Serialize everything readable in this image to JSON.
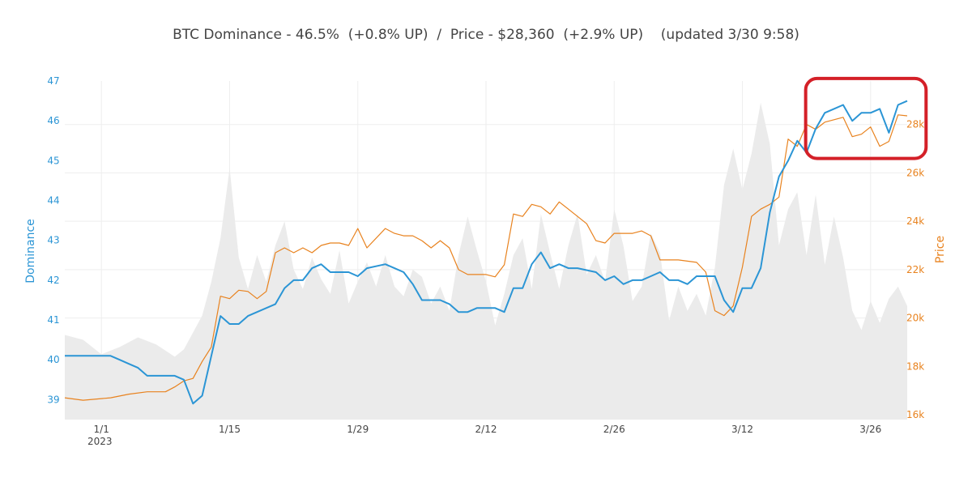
{
  "chart_data": {
    "type": "line",
    "title": "BTC Dominance - 46.5%  (+0.8% UP)  /  Price - $28,360  (+2.9% UP)    (updated 3/30 9:58)",
    "xlabel": "",
    "x_ticks": [
      "1/1",
      "1/15",
      "1/29",
      "2/12",
      "2/26",
      "3/12",
      "3/26"
    ],
    "x_tick_year": "2023",
    "x_range": [
      "2022-12-28",
      "2023-03-30"
    ],
    "y_left": {
      "label": "Dominance",
      "ticks": [
        "39",
        "40",
        "41",
        "42",
        "43",
        "44",
        "45",
        "46",
        "47"
      ],
      "range": [
        38.5,
        47
      ],
      "color": "#2b95d5"
    },
    "y_right": {
      "label": "Price",
      "ticks": [
        "16k",
        "18k",
        "20k",
        "22k",
        "24k",
        "26k",
        "28k"
      ],
      "range": [
        15800,
        29800
      ],
      "color": "#e8821e"
    },
    "grid": true,
    "legend": "none",
    "series": [
      {
        "axis": "left",
        "color": "#2b95d5",
        "points": [
          [
            "2022-12-28",
            40.1
          ],
          [
            "2022-12-30",
            40.1
          ],
          [
            "2023-01-02",
            40.1
          ],
          [
            "2023-01-03",
            40.0
          ],
          [
            "2023-01-04",
            39.9
          ],
          [
            "2023-01-05",
            39.8
          ],
          [
            "2023-01-06",
            39.6
          ],
          [
            "2023-01-07",
            39.6
          ],
          [
            "2023-01-08",
            39.6
          ],
          [
            "2023-01-09",
            39.6
          ],
          [
            "2023-01-10",
            39.5
          ],
          [
            "2023-01-11",
            38.9
          ],
          [
            "2023-01-12",
            39.1
          ],
          [
            "2023-01-13",
            40.1
          ],
          [
            "2023-01-14",
            41.1
          ],
          [
            "2023-01-15",
            40.9
          ],
          [
            "2023-01-16",
            40.9
          ],
          [
            "2023-01-17",
            41.1
          ],
          [
            "2023-01-18",
            41.2
          ],
          [
            "2023-01-20",
            41.4
          ],
          [
            "2023-01-21",
            41.8
          ],
          [
            "2023-01-22",
            42.0
          ],
          [
            "2023-01-23",
            42.0
          ],
          [
            "2023-01-24",
            42.3
          ],
          [
            "2023-01-25",
            42.4
          ],
          [
            "2023-01-26",
            42.2
          ],
          [
            "2023-01-28",
            42.2
          ],
          [
            "2023-01-29",
            42.1
          ],
          [
            "2023-01-30",
            42.3
          ],
          [
            "2023-02-01",
            42.4
          ],
          [
            "2023-02-02",
            42.3
          ],
          [
            "2023-02-03",
            42.2
          ],
          [
            "2023-02-04",
            41.9
          ],
          [
            "2023-02-05",
            41.5
          ],
          [
            "2023-02-07",
            41.5
          ],
          [
            "2023-02-08",
            41.4
          ],
          [
            "2023-02-09",
            41.2
          ],
          [
            "2023-02-10",
            41.2
          ],
          [
            "2023-02-11",
            41.3
          ],
          [
            "2023-02-12",
            41.3
          ],
          [
            "2023-02-13",
            41.3
          ],
          [
            "2023-02-14",
            41.2
          ],
          [
            "2023-02-15",
            41.8
          ],
          [
            "2023-02-16",
            41.8
          ],
          [
            "2023-02-17",
            42.4
          ],
          [
            "2023-02-18",
            42.7
          ],
          [
            "2023-02-19",
            42.3
          ],
          [
            "2023-02-20",
            42.4
          ],
          [
            "2023-02-21",
            42.3
          ],
          [
            "2023-02-22",
            42.3
          ],
          [
            "2023-02-24",
            42.2
          ],
          [
            "2023-02-25",
            42.0
          ],
          [
            "2023-02-26",
            42.1
          ],
          [
            "2023-02-27",
            41.9
          ],
          [
            "2023-02-28",
            42.0
          ],
          [
            "2023-03-01",
            42.0
          ],
          [
            "2023-03-02",
            42.1
          ],
          [
            "2023-03-03",
            42.2
          ],
          [
            "2023-03-04",
            42.0
          ],
          [
            "2023-03-05",
            42.0
          ],
          [
            "2023-03-06",
            41.9
          ],
          [
            "2023-03-07",
            42.1
          ],
          [
            "2023-03-08",
            42.1
          ],
          [
            "2023-03-09",
            42.1
          ],
          [
            "2023-03-10",
            41.5
          ],
          [
            "2023-03-11",
            41.2
          ],
          [
            "2023-03-12",
            41.8
          ],
          [
            "2023-03-13",
            41.8
          ],
          [
            "2023-03-14",
            42.3
          ],
          [
            "2023-03-15",
            43.7
          ],
          [
            "2023-03-16",
            44.6
          ],
          [
            "2023-03-17",
            45.0
          ],
          [
            "2023-03-18",
            45.5
          ],
          [
            "2023-03-19",
            45.2
          ],
          [
            "2023-03-20",
            45.8
          ],
          [
            "2023-03-21",
            46.2
          ],
          [
            "2023-03-22",
            46.3
          ],
          [
            "2023-03-23",
            46.4
          ],
          [
            "2023-03-24",
            46.0
          ],
          [
            "2023-03-25",
            46.2
          ],
          [
            "2023-03-26",
            46.2
          ],
          [
            "2023-03-27",
            46.3
          ],
          [
            "2023-03-28",
            45.7
          ],
          [
            "2023-03-29",
            46.4
          ],
          [
            "2023-03-30",
            46.5
          ]
        ]
      },
      {
        "axis": "right",
        "color": "#e8821e",
        "points": [
          [
            "2022-12-28",
            16700
          ],
          [
            "2022-12-30",
            16600
          ],
          [
            "2023-01-02",
            16700
          ],
          [
            "2023-01-04",
            16850
          ],
          [
            "2023-01-06",
            16950
          ],
          [
            "2023-01-08",
            16950
          ],
          [
            "2023-01-09",
            17150
          ],
          [
            "2023-01-10",
            17400
          ],
          [
            "2023-01-11",
            17500
          ],
          [
            "2023-01-12",
            18200
          ],
          [
            "2023-01-13",
            18800
          ],
          [
            "2023-01-14",
            20900
          ],
          [
            "2023-01-15",
            20800
          ],
          [
            "2023-01-16",
            21150
          ],
          [
            "2023-01-17",
            21100
          ],
          [
            "2023-01-18",
            20800
          ],
          [
            "2023-01-19",
            21100
          ],
          [
            "2023-01-20",
            22700
          ],
          [
            "2023-01-21",
            22900
          ],
          [
            "2023-01-22",
            22700
          ],
          [
            "2023-01-23",
            22900
          ],
          [
            "2023-01-24",
            22700
          ],
          [
            "2023-01-25",
            23000
          ],
          [
            "2023-01-26",
            23100
          ],
          [
            "2023-01-27",
            23100
          ],
          [
            "2023-01-28",
            23000
          ],
          [
            "2023-01-29",
            23700
          ],
          [
            "2023-01-30",
            22900
          ],
          [
            "2023-02-01",
            23700
          ],
          [
            "2023-02-02",
            23500
          ],
          [
            "2023-02-03",
            23400
          ],
          [
            "2023-02-04",
            23400
          ],
          [
            "2023-02-05",
            23200
          ],
          [
            "2023-02-06",
            22900
          ],
          [
            "2023-02-07",
            23200
          ],
          [
            "2023-02-08",
            22900
          ],
          [
            "2023-02-09",
            22000
          ],
          [
            "2023-02-10",
            21800
          ],
          [
            "2023-02-11",
            21800
          ],
          [
            "2023-02-12",
            21800
          ],
          [
            "2023-02-13",
            21700
          ],
          [
            "2023-02-14",
            22200
          ],
          [
            "2023-02-15",
            24300
          ],
          [
            "2023-02-16",
            24200
          ],
          [
            "2023-02-17",
            24700
          ],
          [
            "2023-02-18",
            24600
          ],
          [
            "2023-02-19",
            24300
          ],
          [
            "2023-02-20",
            24800
          ],
          [
            "2023-02-21",
            24500
          ],
          [
            "2023-02-22",
            24200
          ],
          [
            "2023-02-23",
            23900
          ],
          [
            "2023-02-24",
            23200
          ],
          [
            "2023-02-25",
            23100
          ],
          [
            "2023-02-26",
            23500
          ],
          [
            "2023-02-27",
            23500
          ],
          [
            "2023-02-28",
            23500
          ],
          [
            "2023-03-01",
            23600
          ],
          [
            "2023-03-02",
            23400
          ],
          [
            "2023-03-03",
            22400
          ],
          [
            "2023-03-05",
            22400
          ],
          [
            "2023-03-07",
            22300
          ],
          [
            "2023-03-08",
            21900
          ],
          [
            "2023-03-09",
            20300
          ],
          [
            "2023-03-10",
            20100
          ],
          [
            "2023-03-11",
            20500
          ],
          [
            "2023-03-12",
            22100
          ],
          [
            "2023-03-13",
            24200
          ],
          [
            "2023-03-14",
            24500
          ],
          [
            "2023-03-15",
            24700
          ],
          [
            "2023-03-16",
            25000
          ],
          [
            "2023-03-17",
            27400
          ],
          [
            "2023-03-18",
            27100
          ],
          [
            "2023-03-19",
            28000
          ],
          [
            "2023-03-20",
            27800
          ],
          [
            "2023-03-21",
            28100
          ],
          [
            "2023-03-22",
            28200
          ],
          [
            "2023-03-23",
            28300
          ],
          [
            "2023-03-24",
            27500
          ],
          [
            "2023-03-25",
            27600
          ],
          [
            "2023-03-26",
            27900
          ],
          [
            "2023-03-27",
            27100
          ],
          [
            "2023-03-28",
            27300
          ],
          [
            "2023-03-29",
            28400
          ],
          [
            "2023-03-30",
            28360
          ]
        ]
      },
      {
        "axis": "right",
        "type": "area",
        "color": "#ebebeb",
        "points": [
          [
            "2022-12-28",
            19300
          ],
          [
            "2022-12-30",
            19100
          ],
          [
            "2023-01-01",
            18500
          ],
          [
            "2023-01-03",
            18800
          ],
          [
            "2023-01-05",
            19200
          ],
          [
            "2023-01-07",
            18900
          ],
          [
            "2023-01-09",
            18400
          ],
          [
            "2023-01-10",
            18700
          ],
          [
            "2023-01-12",
            20100
          ],
          [
            "2023-01-13",
            21500
          ],
          [
            "2023-01-14",
            23300
          ],
          [
            "2023-01-15",
            26200
          ],
          [
            "2023-01-16",
            22500
          ],
          [
            "2023-01-17",
            21200
          ],
          [
            "2023-01-18",
            22600
          ],
          [
            "2023-01-19",
            21500
          ],
          [
            "2023-01-20",
            23000
          ],
          [
            "2023-01-21",
            24000
          ],
          [
            "2023-01-22",
            22000
          ],
          [
            "2023-01-23",
            21200
          ],
          [
            "2023-01-24",
            22500
          ],
          [
            "2023-01-25",
            21600
          ],
          [
            "2023-01-26",
            21000
          ],
          [
            "2023-01-27",
            22800
          ],
          [
            "2023-01-28",
            20600
          ],
          [
            "2023-01-29",
            21500
          ],
          [
            "2023-01-30",
            22300
          ],
          [
            "2023-01-31",
            21300
          ],
          [
            "2023-02-01",
            22600
          ],
          [
            "2023-02-02",
            21300
          ],
          [
            "2023-02-03",
            20900
          ],
          [
            "2023-02-04",
            22000
          ],
          [
            "2023-02-05",
            21700
          ],
          [
            "2023-02-06",
            20600
          ],
          [
            "2023-02-07",
            21300
          ],
          [
            "2023-02-08",
            20300
          ],
          [
            "2023-02-09",
            22600
          ],
          [
            "2023-02-10",
            24200
          ],
          [
            "2023-02-11",
            22800
          ],
          [
            "2023-02-12",
            21500
          ],
          [
            "2023-02-13",
            19700
          ],
          [
            "2023-02-14",
            21000
          ],
          [
            "2023-02-15",
            22600
          ],
          [
            "2023-02-16",
            23300
          ],
          [
            "2023-02-17",
            21200
          ],
          [
            "2023-02-18",
            24300
          ],
          [
            "2023-02-19",
            22700
          ],
          [
            "2023-02-20",
            21200
          ],
          [
            "2023-02-21",
            23000
          ],
          [
            "2023-02-22",
            24300
          ],
          [
            "2023-02-23",
            21800
          ],
          [
            "2023-02-24",
            22600
          ],
          [
            "2023-02-25",
            21500
          ],
          [
            "2023-02-26",
            24500
          ],
          [
            "2023-02-27",
            23000
          ],
          [
            "2023-02-28",
            20700
          ],
          [
            "2023-03-01",
            21300
          ],
          [
            "2023-03-02",
            23500
          ],
          [
            "2023-03-03",
            22700
          ],
          [
            "2023-03-04",
            19900
          ],
          [
            "2023-03-05",
            21300
          ],
          [
            "2023-03-06",
            20300
          ],
          [
            "2023-03-07",
            21000
          ],
          [
            "2023-03-08",
            20100
          ],
          [
            "2023-03-09",
            22100
          ],
          [
            "2023-03-10",
            25500
          ],
          [
            "2023-03-11",
            27000
          ],
          [
            "2023-03-12",
            25300
          ],
          [
            "2023-03-13",
            26800
          ],
          [
            "2023-03-14",
            28900
          ],
          [
            "2023-03-15",
            27200
          ],
          [
            "2023-03-16",
            23000
          ],
          [
            "2023-03-17",
            24500
          ],
          [
            "2023-03-18",
            25200
          ],
          [
            "2023-03-19",
            22600
          ],
          [
            "2023-03-20",
            25100
          ],
          [
            "2023-03-21",
            22200
          ],
          [
            "2023-03-22",
            24200
          ],
          [
            "2023-03-23",
            22500
          ],
          [
            "2023-03-24",
            20300
          ],
          [
            "2023-03-25",
            19500
          ],
          [
            "2023-03-26",
            20700
          ],
          [
            "2023-03-27",
            19800
          ],
          [
            "2023-03-28",
            20800
          ],
          [
            "2023-03-29",
            21300
          ],
          [
            "2023-03-30",
            20500
          ]
        ]
      }
    ],
    "highlight": {
      "shape": "rounded-rectangle",
      "color": "#d42028",
      "x_range": [
        "2023-03-19",
        "2023-03-31"
      ],
      "y_range_left": [
        45.3,
        46.9
      ]
    }
  }
}
